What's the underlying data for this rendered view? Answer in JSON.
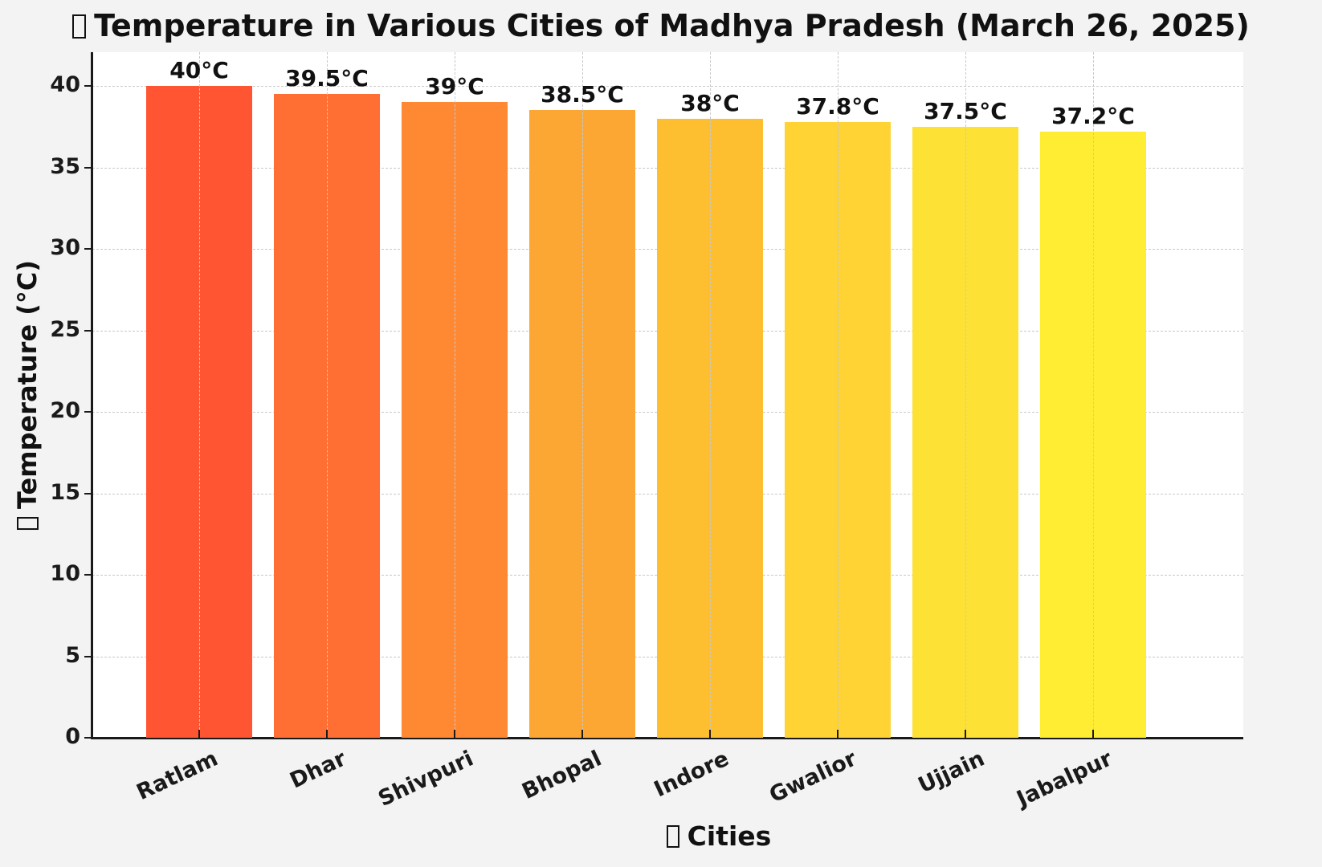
{
  "chart_data": {
    "type": "bar",
    "title": "Temperature in Various Cities of Madhya Pradesh (March 26, 2025)",
    "title_icon": "thermometer-icon",
    "xlabel": "Cities",
    "xlabel_icon": "city-icon",
    "ylabel": "Temperature (°C)",
    "ylabel_icon": "thermometer-icon",
    "categories": [
      "Ratlam",
      "Dhar",
      "Shivpuri",
      "Bhopal",
      "Indore",
      "Gwalior",
      "Ujjain",
      "Jabalpur"
    ],
    "values": [
      40,
      39.5,
      39,
      38.5,
      38,
      37.8,
      37.5,
      37.2
    ],
    "value_labels": [
      "40°C",
      "39.5°C",
      "39°C",
      "38.5°C",
      "38°C",
      "37.8°C",
      "37.5°C",
      "37.2°C"
    ],
    "colors": [
      "#ff5533",
      "#ff6f33",
      "#ff8833",
      "#fca733",
      "#fdbf2f",
      "#fed333",
      "#fde135",
      "#feed33"
    ],
    "ylim": [
      0,
      42
    ],
    "yticks": [
      0,
      5,
      10,
      15,
      20,
      25,
      30,
      35,
      40
    ],
    "grid": true,
    "grid_style": "dashed",
    "xtick_rotation": 25,
    "legend": null
  }
}
